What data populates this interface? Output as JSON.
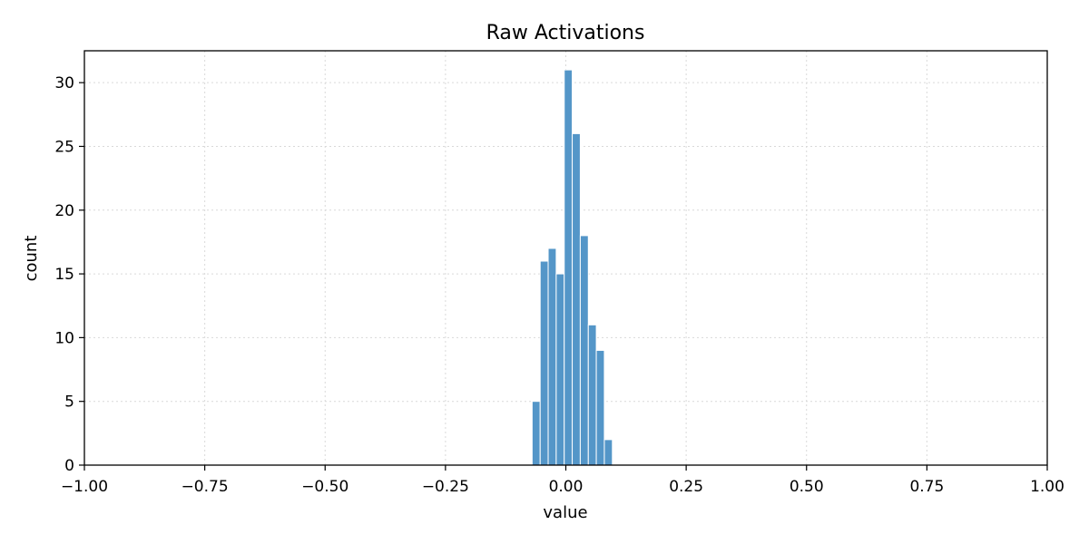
{
  "chart_data": {
    "type": "bar",
    "title": "Raw Activations",
    "xlabel": "value",
    "ylabel": "count",
    "xlim": [
      -1.0,
      1.0
    ],
    "ylim": [
      0,
      32.5
    ],
    "grid": true,
    "color": "#5496c8",
    "x_ticks": [
      -1.0,
      -0.75,
      -0.5,
      -0.25,
      0.0,
      0.25,
      0.5,
      0.75,
      1.0
    ],
    "x_tick_labels": [
      "−1.00",
      "−0.75",
      "−0.50",
      "−0.25",
      "0.00",
      "0.25",
      "0.50",
      "0.75",
      "1.00"
    ],
    "y_ticks": [
      0,
      5,
      10,
      15,
      20,
      25,
      30
    ],
    "y_tick_labels": [
      "0",
      "5",
      "10",
      "15",
      "20",
      "25",
      "30"
    ],
    "bins": [
      {
        "x0": -0.07,
        "x1": -0.0533,
        "count": 5
      },
      {
        "x0": -0.0533,
        "x1": -0.0367,
        "count": 16
      },
      {
        "x0": -0.0367,
        "x1": -0.02,
        "count": 17
      },
      {
        "x0": -0.02,
        "x1": -0.0033,
        "count": 15
      },
      {
        "x0": -0.0033,
        "x1": 0.0133,
        "count": 31
      },
      {
        "x0": 0.0133,
        "x1": 0.03,
        "count": 26
      },
      {
        "x0": 0.03,
        "x1": 0.0467,
        "count": 18
      },
      {
        "x0": 0.0467,
        "x1": 0.0633,
        "count": 11
      },
      {
        "x0": 0.0633,
        "x1": 0.08,
        "count": 9
      },
      {
        "x0": 0.08,
        "x1": 0.0967,
        "count": 2
      }
    ]
  }
}
